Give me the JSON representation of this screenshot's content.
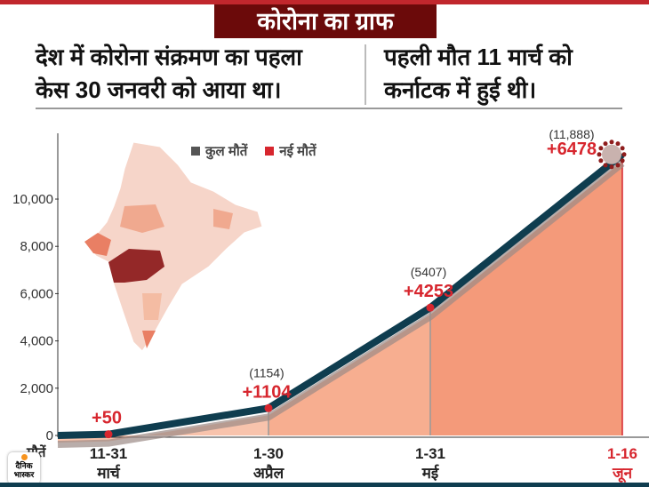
{
  "header": {
    "title": "कोरोना का ग्राफ"
  },
  "notes": [
    {
      "line1": "देश में कोरोना संक्रमण का पहला",
      "line2": "केस 30 जनवरी को आया था।"
    },
    {
      "line1": "पहली मौत 11 मार्च को",
      "line2": "कर्नाटक में हुई थी।"
    }
  ],
  "legend": [
    {
      "label": "कुल मौतें",
      "color": "#555555"
    },
    {
      "label": "नई मौतें",
      "color": "#d7262e"
    }
  ],
  "logo": {
    "line1": "दैनिक",
    "line2": "भास्कर"
  },
  "chart_data": {
    "type": "area",
    "ylabel": "मौतें",
    "yticks": [
      "0",
      "2,000",
      "4,000",
      "6,000",
      "8,000",
      "10,000"
    ],
    "ytick_values": [
      0,
      2000,
      4000,
      6000,
      8000,
      10000
    ],
    "categories": [
      {
        "range": "11-31",
        "month": "मार्च"
      },
      {
        "range": "1-30",
        "month": "अप्रैल"
      },
      {
        "range": "1-31",
        "month": "मई"
      },
      {
        "range": "1-16",
        "month": "जून"
      }
    ],
    "series": [
      {
        "name": "कुल मौतें",
        "values": [
          50,
          1154,
          5407,
          11888
        ],
        "labels": [
          "",
          "(1154)",
          "(5407)",
          "(11,888)"
        ]
      },
      {
        "name": "नई मौतें",
        "values": [
          50,
          1104,
          4253,
          6478
        ],
        "labels": [
          "+50",
          "+1104",
          "+4253",
          "+6478"
        ]
      }
    ],
    "colors": {
      "line": "#0f3d4f",
      "shadow": "#9b8a86",
      "new": "#d7262e",
      "fill": [
        "#f8c3ac",
        "#f7ae90",
        "#f49a7a"
      ]
    }
  }
}
